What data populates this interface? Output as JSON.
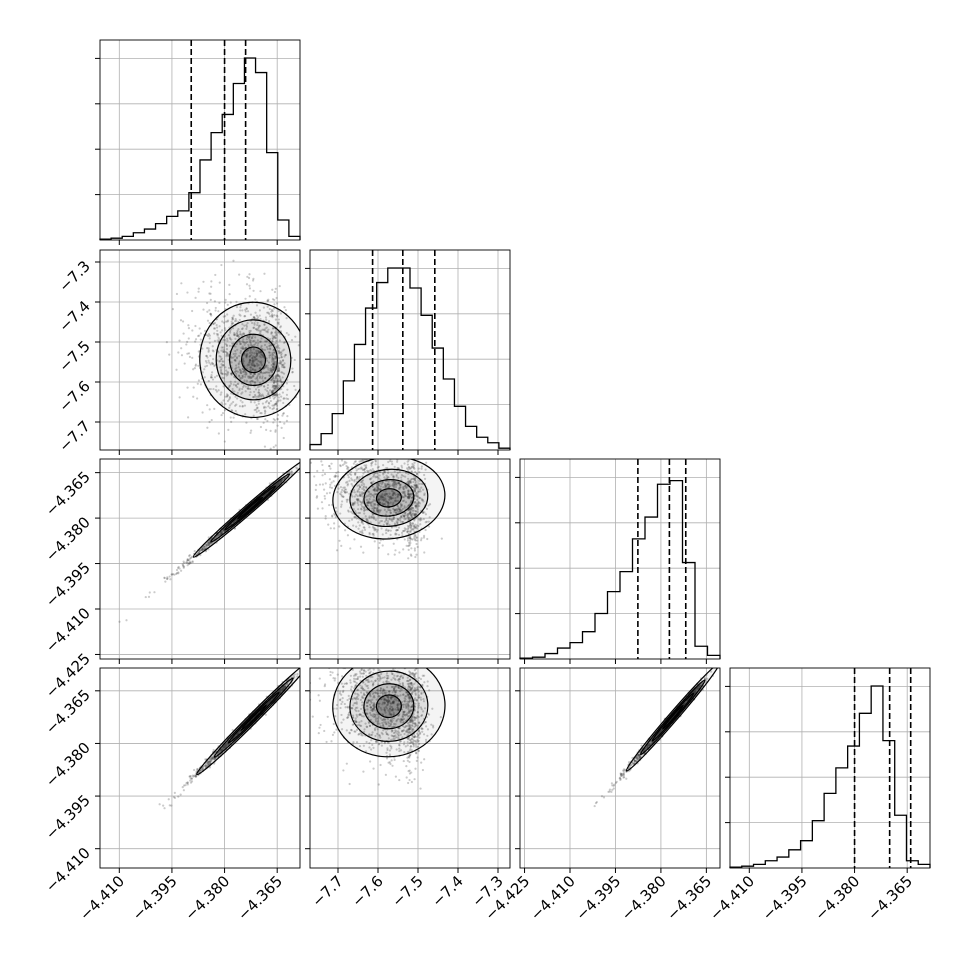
{
  "chart_data": {
    "type": "corner",
    "parameters": 4,
    "grid": true,
    "ticks": {
      "p1": [
        "−4.410",
        "−4.395",
        "−4.380",
        "−4.365"
      ],
      "p2_x": [
        "−7.7",
        "−7.6",
        "−7.5",
        "−7.4",
        "−7.3"
      ],
      "p2_y": [
        "−7.3",
        "−7.4",
        "−7.5",
        "−7.6",
        "−7.7"
      ],
      "p3_x": [
        "−4.425",
        "−4.410",
        "−4.395",
        "−4.380",
        "−4.365"
      ],
      "p3_y": [
        "−4.365",
        "−4.380",
        "−4.395",
        "−4.410",
        "−4.425"
      ],
      "p4_x": [
        "−4.410",
        "−4.395",
        "−4.380",
        "−4.365"
      ],
      "p4_y": [
        "−4.365",
        "−4.380",
        "−4.395",
        "−4.410"
      ]
    },
    "ranges": {
      "p1": [
        -4.4155,
        -4.3585
      ],
      "p2": [
        -7.77,
        -7.27
      ],
      "p3": [
        -4.4265,
        -4.3605
      ],
      "p4": [
        -4.4155,
        -4.3585
      ]
    },
    "quantiles": {
      "p1": [
        -4.3895,
        -4.38,
        -4.374
      ],
      "p2": [
        -7.6135,
        -7.538,
        -7.458
      ],
      "p3": [
        -4.3876,
        -4.3772,
        -4.3718
      ],
      "p4": [
        -4.38,
        -4.37,
        -4.364
      ]
    },
    "histograms": {
      "p1": [
        0.005,
        0.01,
        0.02,
        0.04,
        0.06,
        0.09,
        0.13,
        0.16,
        0.26,
        0.44,
        0.59,
        0.69,
        0.86,
        1.0,
        0.92,
        0.48,
        0.11,
        0.02
      ],
      "p2": [
        0.03,
        0.09,
        0.2,
        0.38,
        0.58,
        0.78,
        0.92,
        1.0,
        1.0,
        0.89,
        0.74,
        0.56,
        0.39,
        0.24,
        0.13,
        0.07,
        0.04,
        0.01
      ],
      "p3": [
        0.005,
        0.01,
        0.03,
        0.06,
        0.09,
        0.15,
        0.25,
        0.37,
        0.48,
        0.66,
        0.78,
        0.96,
        0.98,
        0.53,
        0.07,
        0.02
      ],
      "p4": [
        0.005,
        0.01,
        0.02,
        0.04,
        0.06,
        0.1,
        0.15,
        0.26,
        0.41,
        0.55,
        0.67,
        0.85,
        1.0,
        0.7,
        0.29,
        0.04,
        0.02
      ]
    },
    "correlations": {
      "2-1": -0.2,
      "3-1": 0.99,
      "3-2": -0.3,
      "4-1": 0.99,
      "4-2": -0.25,
      "4-3": 0.99
    },
    "mode_2d": {
      "2-1": [
        -4.3692,
        -7.5494
      ],
      "3-1": [
        -4.37,
        -4.374
      ],
      "3-2": [
        -7.5494,
        -4.374
      ],
      "4-1": [
        -4.369,
        -4.37
      ],
      "4-2": [
        -7.5494,
        -4.37
      ],
      "4-3": [
        -4.3735,
        -4.37
      ]
    },
    "spread_2d": {
      "2-1": [
        0.0085,
        0.08
      ],
      "3-1": [
        0.009,
        0.009
      ],
      "3-2": [
        0.078,
        0.0075
      ],
      "4-1": [
        0.009,
        0.009
      ],
      "4-2": [
        0.078,
        0.008
      ],
      "4-3": [
        0.0085,
        0.0085
      ]
    },
    "colors": {
      "line": "#000000",
      "grid": "#b0b0b0",
      "points": "#444444"
    }
  }
}
